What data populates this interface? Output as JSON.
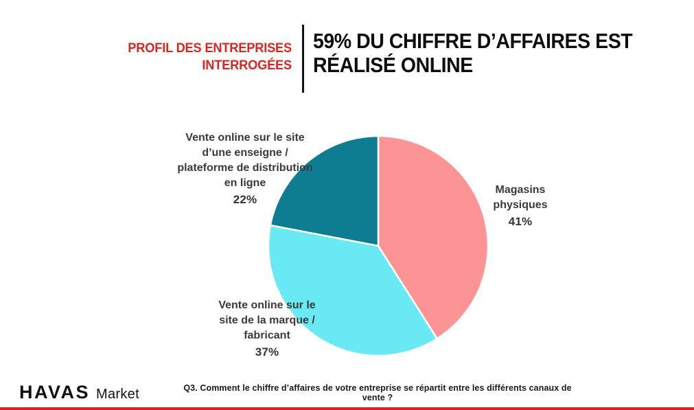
{
  "header": {
    "kicker": "PROFIL DES ENTREPRISES\nINTERROGÉES",
    "title": "59% DU CHIFFRE D’AFFAIRES EST\nRÉALISÉ ONLINE"
  },
  "chart_data": {
    "type": "pie",
    "start_angle_deg": 0,
    "direction": "clockwise",
    "value_suffix": "%",
    "slices": [
      {
        "label": "Magasins physiques",
        "value": 41,
        "color": "#FC9496"
      },
      {
        "label": "Vente online sur le site de la marque / fabricant",
        "value": 37,
        "color": "#69E9F4"
      },
      {
        "label": "Vente online sur le site d’une enseigne / plateforme de distribution en ligne",
        "value": 22,
        "color": "#0E7D92"
      }
    ],
    "slice_border_color": "#FFFFFF",
    "legend": "none"
  },
  "footer": {
    "logo_primary": "HAVAS",
    "logo_secondary": "Market",
    "caption": "Q3. Comment le chiffre d’affaires de votre entreprise se répartit entre les différents canaux de vente ?"
  },
  "colors": {
    "accent_red": "#E0231E",
    "title_text": "#0D0D0D",
    "label_text": "#3A3A3A"
  }
}
